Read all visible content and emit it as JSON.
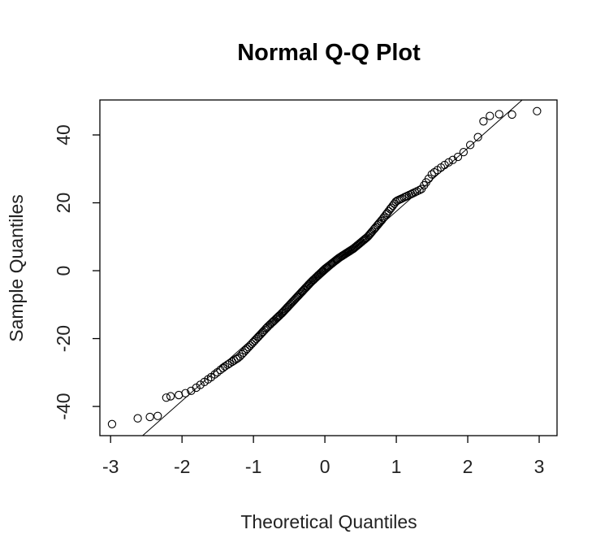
{
  "chart_data": {
    "type": "scatter",
    "title": "Normal Q-Q Plot",
    "xlabel": "Theoretical Quantiles",
    "ylabel": "Sample Quantiles",
    "xlim": [
      -3.15,
      3.25
    ],
    "ylim": [
      -48.6,
      50.3
    ],
    "x_ticks": [
      -3,
      -2,
      -1,
      0,
      1,
      2,
      3
    ],
    "y_ticks": [
      -40,
      -20,
      0,
      20,
      40
    ],
    "x_tick_labels": [
      "-3",
      "-2",
      "-1",
      "0",
      "1",
      "2",
      "3"
    ],
    "y_tick_labels": [
      "-40",
      "-20",
      "0",
      "20",
      "40"
    ],
    "grid": false,
    "legend": "none",
    "reference_line": {
      "x1": -2.6,
      "y1": -49.5,
      "x2": 2.8,
      "y2": 51.0
    },
    "outliers": [
      {
        "x": -2.98,
        "y": -45.2
      },
      {
        "x": -2.62,
        "y": -43.5
      },
      {
        "x": -2.45,
        "y": -43.1
      },
      {
        "x": -2.34,
        "y": -42.8
      },
      {
        "x": -2.22,
        "y": -37.4
      },
      {
        "x": 2.22,
        "y": 44.0
      },
      {
        "x": 2.31,
        "y": 45.6
      },
      {
        "x": 2.44,
        "y": 46.1
      },
      {
        "x": 2.62,
        "y": 46.0
      },
      {
        "x": 2.97,
        "y": 47.0
      }
    ],
    "curve_knots": [
      {
        "x": -2.16,
        "y": -37.0
      },
      {
        "x": -2.0,
        "y": -36.5
      },
      {
        "x": -1.85,
        "y": -35.2
      },
      {
        "x": -1.6,
        "y": -31.5
      },
      {
        "x": -1.4,
        "y": -28.2
      },
      {
        "x": -1.2,
        "y": -25.5
      },
      {
        "x": -1.0,
        "y": -21.0
      },
      {
        "x": -0.8,
        "y": -16.5
      },
      {
        "x": -0.6,
        "y": -12.5
      },
      {
        "x": -0.4,
        "y": -8.0
      },
      {
        "x": -0.2,
        "y": -3.5
      },
      {
        "x": 0.0,
        "y": 0.5
      },
      {
        "x": 0.2,
        "y": 3.8
      },
      {
        "x": 0.4,
        "y": 6.5
      },
      {
        "x": 0.6,
        "y": 10.0
      },
      {
        "x": 0.8,
        "y": 15.0
      },
      {
        "x": 1.0,
        "y": 20.5
      },
      {
        "x": 1.2,
        "y": 22.5
      },
      {
        "x": 1.35,
        "y": 24.0
      },
      {
        "x": 1.5,
        "y": 28.5
      },
      {
        "x": 1.7,
        "y": 31.5
      },
      {
        "x": 1.9,
        "y": 34.0
      },
      {
        "x": 2.1,
        "y": 38.5
      },
      {
        "x": 2.15,
        "y": 39.5
      }
    ],
    "curve_point_count": 190,
    "colors": {
      "points": "#000000",
      "line": "#000000",
      "background": "#ffffff"
    }
  }
}
